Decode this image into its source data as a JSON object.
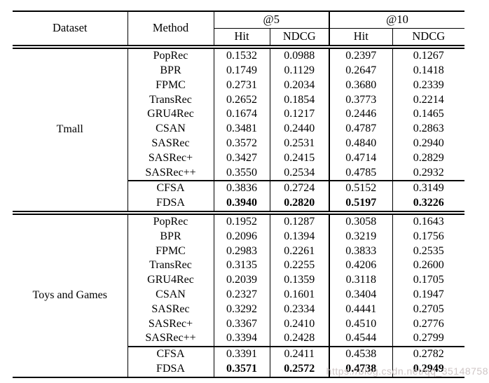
{
  "watermark": {
    "text": "https://blog.csdn.net/qq_35148758"
  },
  "table": {
    "headers": {
      "dataset": "Dataset",
      "method": "Method",
      "group_at5": "@5",
      "group_at10": "@10",
      "sub": [
        "Hit",
        "NDCG",
        "Hit",
        "NDCG"
      ]
    },
    "blocks": [
      {
        "dataset": "Tmall",
        "rows": [
          {
            "method": "PopRec",
            "values": [
              "0.1532",
              "0.0988",
              "0.2397",
              "0.1267"
            ]
          },
          {
            "method": "BPR",
            "values": [
              "0.1749",
              "0.1129",
              "0.2647",
              "0.1418"
            ]
          },
          {
            "method": "FPMC",
            "values": [
              "0.2731",
              "0.2034",
              "0.3680",
              "0.2339"
            ]
          },
          {
            "method": "TransRec",
            "values": [
              "0.2652",
              "0.1854",
              "0.3773",
              "0.2214"
            ]
          },
          {
            "method": "GRU4Rec",
            "values": [
              "0.1674",
              "0.1217",
              "0.2446",
              "0.1465"
            ]
          },
          {
            "method": "CSAN",
            "values": [
              "0.3481",
              "0.2440",
              "0.4787",
              "0.2863"
            ]
          },
          {
            "method": "SASRec",
            "values": [
              "0.3572",
              "0.2531",
              "0.4840",
              "0.2940"
            ]
          },
          {
            "method": "SASRec+",
            "values": [
              "0.3427",
              "0.2415",
              "0.4714",
              "0.2829"
            ]
          },
          {
            "method": "SASRec++",
            "values": [
              "0.3550",
              "0.2534",
              "0.4785",
              "0.2932"
            ]
          },
          {
            "method": "CFSA",
            "values": [
              "0.3836",
              "0.2724",
              "0.5152",
              "0.3149"
            ],
            "separator": true
          },
          {
            "method": "FDSA",
            "values": [
              "0.3940",
              "0.2820",
              "0.5197",
              "0.3226"
            ],
            "bold": true
          }
        ]
      },
      {
        "dataset": "Toys and Games",
        "rows": [
          {
            "method": "PopRec",
            "values": [
              "0.1952",
              "0.1287",
              "0.3058",
              "0.1643"
            ]
          },
          {
            "method": "BPR",
            "values": [
              "0.2096",
              "0.1394",
              "0.3219",
              "0.1756"
            ]
          },
          {
            "method": "FPMC",
            "values": [
              "0.2983",
              "0.2261",
              "0.3833",
              "0.2535"
            ]
          },
          {
            "method": "TransRec",
            "values": [
              "0.3135",
              "0.2255",
              "0.4206",
              "0.2600"
            ]
          },
          {
            "method": "GRU4Rec",
            "values": [
              "0.2039",
              "0.1359",
              "0.3118",
              "0.1705"
            ]
          },
          {
            "method": "CSAN",
            "values": [
              "0.2327",
              "0.1601",
              "0.3404",
              "0.1947"
            ]
          },
          {
            "method": "SASRec",
            "values": [
              "0.3292",
              "0.2334",
              "0.4441",
              "0.2705"
            ]
          },
          {
            "method": "SASRec+",
            "values": [
              "0.3367",
              "0.2410",
              "0.4510",
              "0.2776"
            ]
          },
          {
            "method": "SASRec++",
            "values": [
              "0.3394",
              "0.2428",
              "0.4544",
              "0.2799"
            ]
          },
          {
            "method": "CFSA",
            "values": [
              "0.3391",
              "0.2411",
              "0.4538",
              "0.2782"
            ],
            "separator": true
          },
          {
            "method": "FDSA",
            "values": [
              "0.3571",
              "0.2572",
              "0.4738",
              "0.2949"
            ],
            "bold": true
          }
        ]
      }
    ]
  }
}
